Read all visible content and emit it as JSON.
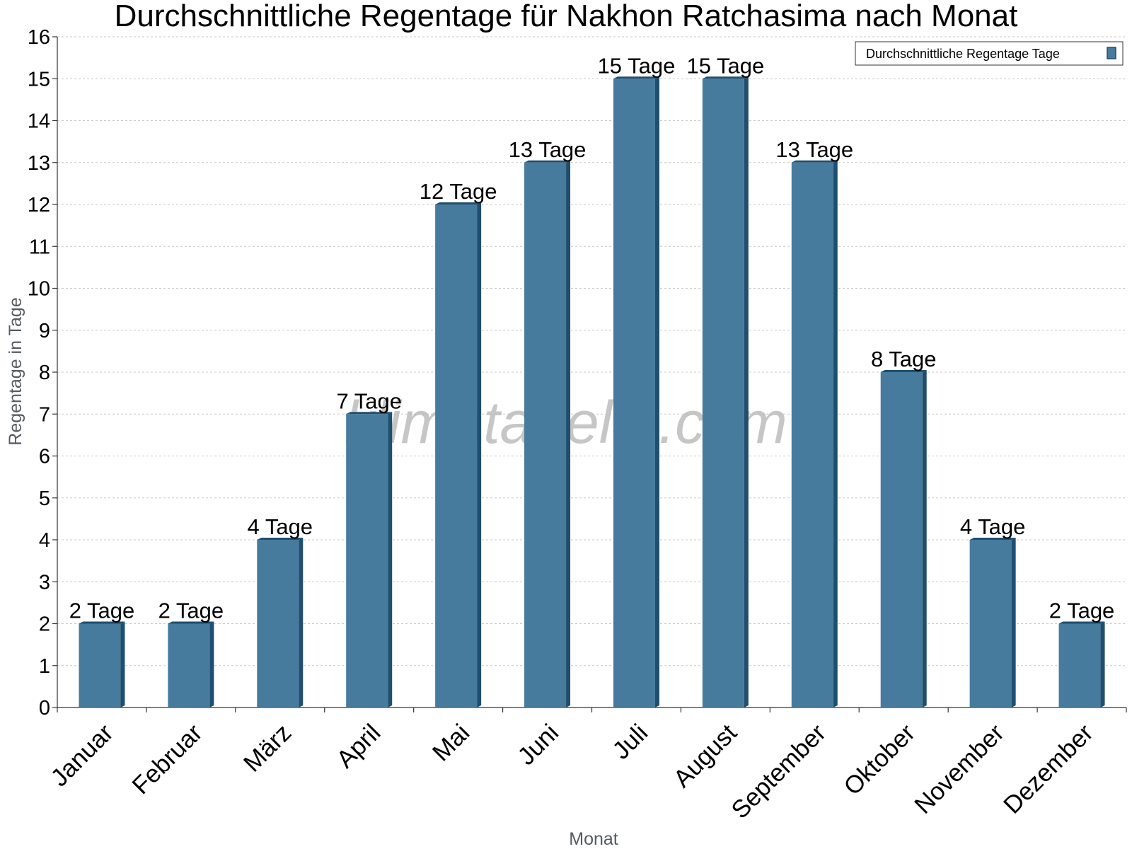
{
  "watermark": "klimatabelle.com",
  "chart_data": {
    "type": "bar",
    "title": "Durchschnittliche Regentage für Nakhon Ratchasima nach Monat",
    "xlabel": "Monat",
    "ylabel": "Regentage in Tage",
    "ylim": [
      0,
      16
    ],
    "yticks": [
      0,
      1,
      2,
      3,
      4,
      5,
      6,
      7,
      8,
      9,
      10,
      11,
      12,
      13,
      14,
      15,
      16
    ],
    "grid": "horizontal dotted",
    "legend_position": "top-right",
    "categories": [
      "Januar",
      "Februar",
      "März",
      "April",
      "Mai",
      "Juni",
      "Juli",
      "August",
      "September",
      "Oktober",
      "November",
      "Dezember"
    ],
    "series": [
      {
        "name": "Durchschnittliche Regentage Tage",
        "values": [
          2,
          2,
          4,
          7,
          12,
          13,
          15,
          15,
          13,
          8,
          4,
          2
        ],
        "data_labels": [
          "2 Tage",
          "2 Tage",
          "4 Tage",
          "7 Tage",
          "12 Tage",
          "13 Tage",
          "15 Tage",
          "15 Tage",
          "13 Tage",
          "8 Tage",
          "4 Tage",
          "2 Tage"
        ],
        "color": "#467b9d",
        "side_color": "#1f4e6e"
      }
    ]
  }
}
